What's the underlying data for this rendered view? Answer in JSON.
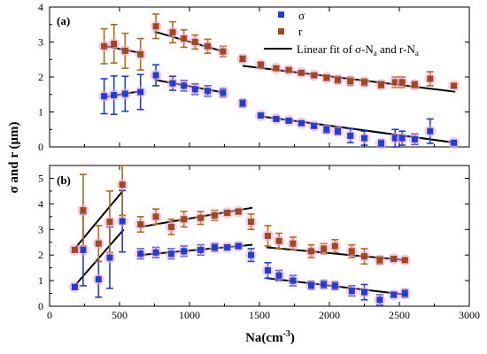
{
  "figure": {
    "ylabel": "σ and r (μm)",
    "xlabel_main": "Na(cm",
    "xlabel_sup": "-3",
    "xlabel_end": ")"
  },
  "legend": {
    "sigma_label": "σ",
    "r_label": "r",
    "fit_label_main": "Linear fit of σ-N",
    "fit_label_sub1": "a",
    "fit_label_mid": " and r-N",
    "fit_label_sub2": "a"
  },
  "colors": {
    "sigma": "#1f3fd0",
    "r": "#9e4a1e",
    "r_error": "#b06a1a",
    "marker_halo": "#f0a6d6",
    "fit": "#000000"
  },
  "chart_data": [
    {
      "type": "scatter",
      "panel_label": "(a)",
      "xlim": [
        0,
        3000
      ],
      "ylim": [
        0,
        4
      ],
      "xticks": [
        0,
        500,
        1000,
        1500,
        2000,
        2500,
        3000
      ],
      "yticks": [
        0,
        1,
        2,
        3,
        4
      ],
      "show_x_tick_labels": false,
      "series": [
        {
          "name": "σ",
          "marker": "square",
          "points": [
            {
              "x": 390,
              "y": 1.45,
              "err": 0.5
            },
            {
              "x": 460,
              "y": 1.48,
              "err": 0.55
            },
            {
              "x": 540,
              "y": 1.52,
              "err": 0.5
            },
            {
              "x": 650,
              "y": 1.57,
              "err": 0.5
            },
            {
              "x": 760,
              "y": 2.05,
              "err": 0.3
            },
            {
              "x": 880,
              "y": 1.82,
              "err": 0.2
            },
            {
              "x": 960,
              "y": 1.75,
              "err": 0.15
            },
            {
              "x": 1040,
              "y": 1.65,
              "err": 0.15
            },
            {
              "x": 1130,
              "y": 1.6,
              "err": 0.15
            },
            {
              "x": 1240,
              "y": 1.55,
              "err": 0.12
            },
            {
              "x": 1380,
              "y": 1.25,
              "err": 0.1
            },
            {
              "x": 1510,
              "y": 0.9,
              "err": 0.05
            },
            {
              "x": 1620,
              "y": 0.8,
              "err": 0.05
            },
            {
              "x": 1710,
              "y": 0.75,
              "err": 0.05
            },
            {
              "x": 1800,
              "y": 0.68,
              "err": 0.05
            },
            {
              "x": 1890,
              "y": 0.6,
              "err": 0.05
            },
            {
              "x": 1980,
              "y": 0.5,
              "err": 0.1
            },
            {
              "x": 2060,
              "y": 0.45,
              "err": 0.1
            },
            {
              "x": 2150,
              "y": 0.32,
              "err": 0.2
            },
            {
              "x": 2250,
              "y": 0.25,
              "err": 0.2
            },
            {
              "x": 2370,
              "y": 0.1,
              "err": 0.1
            },
            {
              "x": 2470,
              "y": 0.25,
              "err": 0.25
            },
            {
              "x": 2520,
              "y": 0.25,
              "err": 0.2
            },
            {
              "x": 2610,
              "y": 0.22,
              "err": 0.15
            },
            {
              "x": 2720,
              "y": 0.45,
              "err": 0.35
            },
            {
              "x": 2890,
              "y": 0.12,
              "err": 0.05
            }
          ]
        },
        {
          "name": "r",
          "marker": "square",
          "points": [
            {
              "x": 390,
              "y": 2.88,
              "err": 0.5
            },
            {
              "x": 460,
              "y": 2.95,
              "err": 0.55
            },
            {
              "x": 540,
              "y": 2.75,
              "err": 0.5
            },
            {
              "x": 650,
              "y": 2.65,
              "err": 0.45
            },
            {
              "x": 760,
              "y": 3.45,
              "err": 0.35
            },
            {
              "x": 880,
              "y": 3.28,
              "err": 0.3
            },
            {
              "x": 960,
              "y": 3.1,
              "err": 0.25
            },
            {
              "x": 1040,
              "y": 3.0,
              "err": 0.2
            },
            {
              "x": 1130,
              "y": 2.88,
              "err": 0.2
            },
            {
              "x": 1240,
              "y": 2.73,
              "err": 0.15
            },
            {
              "x": 1380,
              "y": 2.52,
              "err": 0.08
            },
            {
              "x": 1510,
              "y": 2.35,
              "err": 0.08
            },
            {
              "x": 1620,
              "y": 2.25,
              "err": 0.05
            },
            {
              "x": 1710,
              "y": 2.2,
              "err": 0.05
            },
            {
              "x": 1800,
              "y": 2.12,
              "err": 0.05
            },
            {
              "x": 1890,
              "y": 2.05,
              "err": 0.05
            },
            {
              "x": 1980,
              "y": 1.98,
              "err": 0.08
            },
            {
              "x": 2060,
              "y": 1.92,
              "err": 0.1
            },
            {
              "x": 2150,
              "y": 1.88,
              "err": 0.12
            },
            {
              "x": 2250,
              "y": 1.85,
              "err": 0.1
            },
            {
              "x": 2370,
              "y": 1.78,
              "err": 0.1
            },
            {
              "x": 2470,
              "y": 1.85,
              "err": 0.15
            },
            {
              "x": 2520,
              "y": 1.85,
              "err": 0.15
            },
            {
              "x": 2610,
              "y": 1.78,
              "err": 0.1
            },
            {
              "x": 2720,
              "y": 1.95,
              "err": 0.2
            },
            {
              "x": 2890,
              "y": 1.75,
              "err": 0.05
            }
          ]
        }
      ],
      "fits": [
        {
          "x": [
            380,
            660
          ],
          "y": [
            1.42,
            1.6
          ]
        },
        {
          "x": [
            750,
            1250
          ],
          "y": [
            1.92,
            1.55
          ]
        },
        {
          "x": [
            1500,
            2900
          ],
          "y": [
            0.88,
            0.12
          ]
        },
        {
          "x": [
            380,
            660
          ],
          "y": [
            2.9,
            2.68
          ]
        },
        {
          "x": [
            750,
            1250
          ],
          "y": [
            3.3,
            2.72
          ]
        },
        {
          "x": [
            1380,
            2900
          ],
          "y": [
            2.32,
            1.58
          ]
        }
      ]
    },
    {
      "type": "scatter",
      "panel_label": "(b)",
      "xlim": [
        0,
        3000
      ],
      "ylim": [
        0,
        5.5
      ],
      "xticks": [
        0,
        500,
        1000,
        1500,
        2000,
        2500,
        3000
      ],
      "yticks": [
        0,
        1,
        2,
        3,
        4,
        5
      ],
      "show_x_tick_labels": true,
      "series": [
        {
          "name": "σ",
          "marker": "square",
          "points": [
            {
              "x": 180,
              "y": 0.75,
              "err": 0.1
            },
            {
              "x": 240,
              "y": 2.2,
              "err": 1.4
            },
            {
              "x": 350,
              "y": 1.05,
              "err": 0.7
            },
            {
              "x": 430,
              "y": 1.9,
              "err": 1.2
            },
            {
              "x": 520,
              "y": 3.32,
              "err": 1.2
            },
            {
              "x": 650,
              "y": 2.05,
              "err": 0.2
            },
            {
              "x": 760,
              "y": 2.1,
              "err": 0.2
            },
            {
              "x": 870,
              "y": 2.05,
              "err": 0.2
            },
            {
              "x": 960,
              "y": 2.15,
              "err": 0.2
            },
            {
              "x": 1080,
              "y": 2.2,
              "err": 0.2
            },
            {
              "x": 1180,
              "y": 2.3,
              "err": 0.15
            },
            {
              "x": 1270,
              "y": 2.3,
              "err": 0.1
            },
            {
              "x": 1350,
              "y": 2.35,
              "err": 0.1
            },
            {
              "x": 1440,
              "y": 2.0,
              "err": 0.25
            },
            {
              "x": 1560,
              "y": 1.4,
              "err": 0.3
            },
            {
              "x": 1640,
              "y": 1.2,
              "err": 0.2
            },
            {
              "x": 1740,
              "y": 1.0,
              "err": 0.2
            },
            {
              "x": 1870,
              "y": 0.82,
              "err": 0.15
            },
            {
              "x": 1960,
              "y": 0.85,
              "err": 0.15
            },
            {
              "x": 2040,
              "y": 0.8,
              "err": 0.15
            },
            {
              "x": 2160,
              "y": 0.6,
              "err": 0.2
            },
            {
              "x": 2250,
              "y": 0.55,
              "err": 0.3
            },
            {
              "x": 2360,
              "y": 0.25,
              "err": 0.2
            },
            {
              "x": 2460,
              "y": 0.45,
              "err": 0.1
            },
            {
              "x": 2540,
              "y": 0.5,
              "err": 0.15
            }
          ]
        },
        {
          "name": "r",
          "marker": "square",
          "points": [
            {
              "x": 180,
              "y": 2.2,
              "err": 0.1
            },
            {
              "x": 240,
              "y": 3.75,
              "err": 1.4
            },
            {
              "x": 350,
              "y": 2.45,
              "err": 0.7
            },
            {
              "x": 430,
              "y": 3.3,
              "err": 1.2
            },
            {
              "x": 520,
              "y": 4.75,
              "err": 1.2
            },
            {
              "x": 650,
              "y": 3.2,
              "err": 0.3
            },
            {
              "x": 760,
              "y": 3.5,
              "err": 0.3
            },
            {
              "x": 870,
              "y": 3.1,
              "err": 0.3
            },
            {
              "x": 960,
              "y": 3.4,
              "err": 0.3
            },
            {
              "x": 1080,
              "y": 3.45,
              "err": 0.25
            },
            {
              "x": 1180,
              "y": 3.55,
              "err": 0.2
            },
            {
              "x": 1270,
              "y": 3.65,
              "err": 0.1
            },
            {
              "x": 1350,
              "y": 3.7,
              "err": 0.1
            },
            {
              "x": 1440,
              "y": 3.3,
              "err": 0.3
            },
            {
              "x": 1560,
              "y": 2.75,
              "err": 0.4
            },
            {
              "x": 1640,
              "y": 2.55,
              "err": 0.3
            },
            {
              "x": 1740,
              "y": 2.45,
              "err": 0.25
            },
            {
              "x": 1870,
              "y": 2.15,
              "err": 0.25
            },
            {
              "x": 1960,
              "y": 2.25,
              "err": 0.2
            },
            {
              "x": 2040,
              "y": 2.35,
              "err": 0.25
            },
            {
              "x": 2160,
              "y": 2.15,
              "err": 0.25
            },
            {
              "x": 2250,
              "y": 1.95,
              "err": 0.3
            },
            {
              "x": 2360,
              "y": 1.8,
              "err": 0.15
            },
            {
              "x": 2460,
              "y": 1.85,
              "err": 0.1
            },
            {
              "x": 2540,
              "y": 1.8,
              "err": 0.05
            }
          ]
        }
      ],
      "fits": [
        {
          "x": [
            180,
            530
          ],
          "y": [
            0.8,
            3.0
          ]
        },
        {
          "x": [
            180,
            530
          ],
          "y": [
            2.25,
            4.55
          ]
        },
        {
          "x": [
            650,
            1450
          ],
          "y": [
            2.0,
            2.4
          ]
        },
        {
          "x": [
            650,
            1450
          ],
          "y": [
            3.1,
            3.85
          ]
        },
        {
          "x": [
            1550,
            2550
          ],
          "y": [
            1.1,
            0.45
          ]
        },
        {
          "x": [
            1550,
            2550
          ],
          "y": [
            2.3,
            1.8
          ]
        }
      ]
    }
  ]
}
